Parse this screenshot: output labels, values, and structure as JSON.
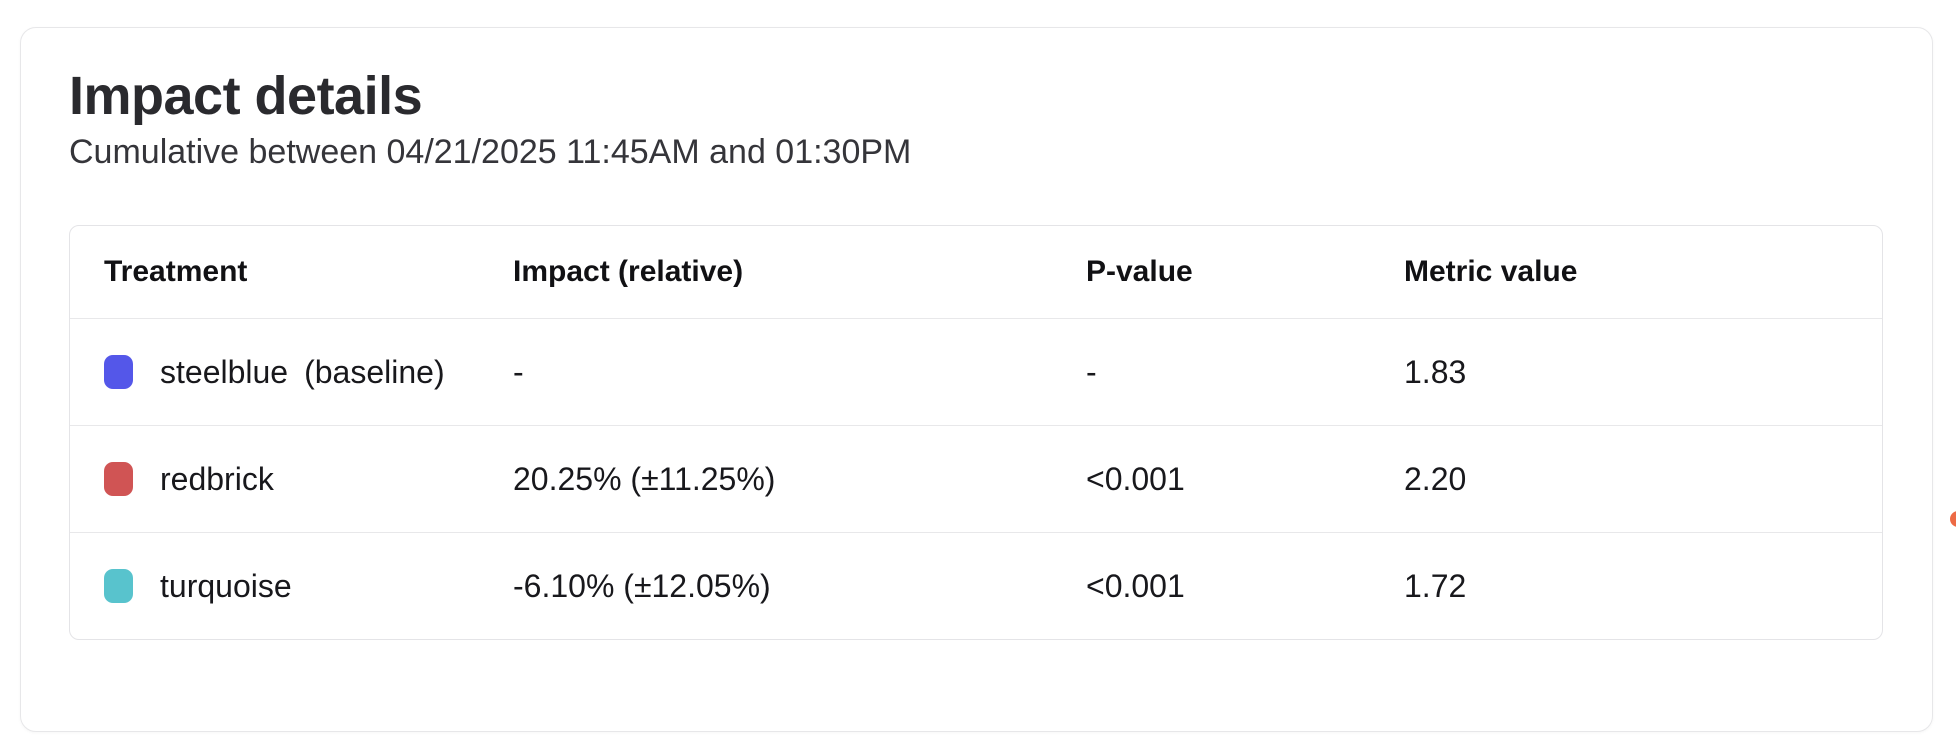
{
  "card": {
    "title": "Impact details",
    "subtitle": "Cumulative between 04/21/2025 11:45AM and 01:30PM"
  },
  "table": {
    "columns": {
      "treatment": "Treatment",
      "impact": "Impact (relative)",
      "p_value": "P-value",
      "metric_value": "Metric value"
    },
    "rows": [
      {
        "treatment": "steelblue",
        "suffix": "(baseline)",
        "swatch_color": "#5457e9",
        "impact": "-",
        "p_value": "-",
        "metric_value": "1.83"
      },
      {
        "treatment": "redbrick",
        "suffix": "",
        "swatch_color": "#d05454",
        "impact": "20.25% (±11.25%)",
        "p_value": "<0.001",
        "metric_value": "2.20"
      },
      {
        "treatment": "turquoise",
        "suffix": "",
        "swatch_color": "#58c3cd",
        "impact": "-6.10% (±12.05%)",
        "p_value": "<0.001",
        "metric_value": "1.72"
      }
    ]
  },
  "decorations": {
    "clipped_dot_color": "#ed6a45"
  }
}
